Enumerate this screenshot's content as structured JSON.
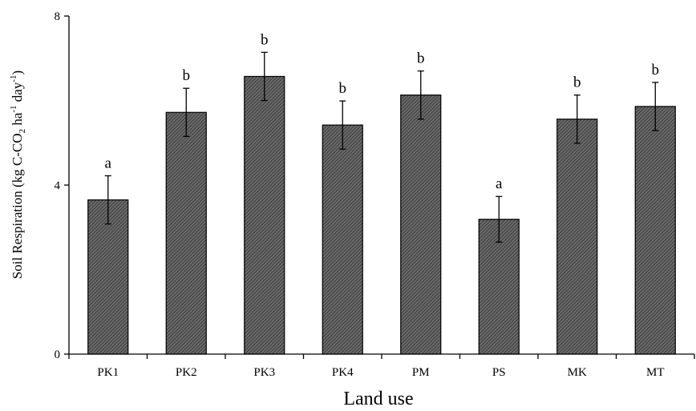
{
  "chart_data": {
    "type": "bar",
    "title": "",
    "xlabel": "Land use",
    "ylabel": {
      "prefix": "Soil Respiration (kg C-CO",
      "sub": "2",
      "mid1": " ha",
      "sup1": "-1",
      "mid2": " day",
      "sup2": "-1",
      "suffix": ")"
    },
    "ylim": [
      0,
      8
    ],
    "yticks": [
      "0",
      "4",
      "8"
    ],
    "grid": false,
    "legend": "none",
    "categories": [
      "PK1",
      "PK2",
      "PK3",
      "PK4",
      "PM",
      "PS",
      "MK",
      "MT"
    ],
    "values": [
      3.65,
      5.72,
      6.57,
      5.42,
      6.13,
      3.19,
      5.56,
      5.86
    ],
    "errors": [
      0.57,
      0.57,
      0.57,
      0.57,
      0.57,
      0.54,
      0.57,
      0.57
    ],
    "significance": [
      "a",
      "b",
      "b",
      "b",
      "b",
      "a",
      "b",
      "b"
    ],
    "bar_fill": "#555555",
    "bar_stroke": "#000000"
  }
}
